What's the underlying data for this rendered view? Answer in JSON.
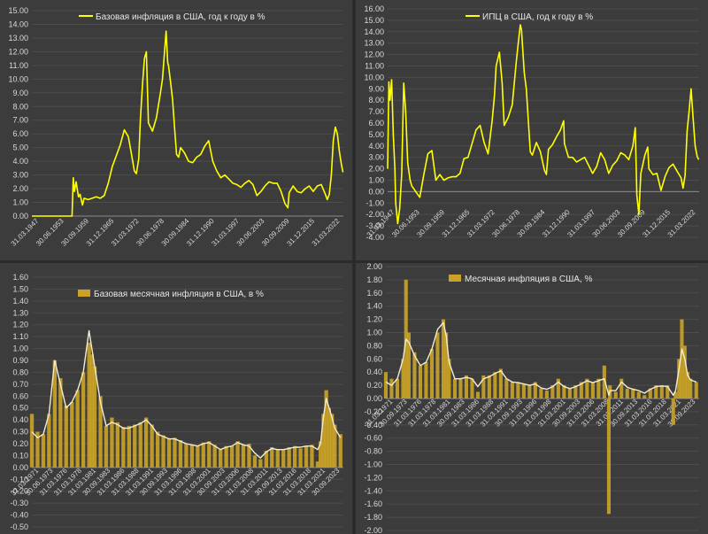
{
  "chart_data": [
    {
      "type": "line",
      "legend": "Базовая инфляция в США, год к году в %",
      "color": "#ffff00",
      "ylim": [
        0,
        15
      ],
      "ytick_step": 1,
      "ytick_labels": [
        "0.00",
        "1.00",
        "2.00",
        "3.00",
        "4.00",
        "5.00",
        "6.00",
        "7.00",
        "8.00",
        "9.00",
        "10.00",
        "11.00",
        "12.00",
        "13.00",
        "14.00",
        "15.00"
      ],
      "xtick_labels": [
        "31.03.1947",
        "30.06.1953",
        "30.09.1959",
        "31.12.1965",
        "31.03.1972",
        "30.06.1978",
        "30.09.1984",
        "31.12.1990",
        "31.03.1997",
        "30.06.2003",
        "30.09.2009",
        "31.12.2015",
        "31.03.2022"
      ],
      "xlim": [
        1947,
        2024.5
      ],
      "x": [
        1947,
        1957,
        1957.3,
        1957.6,
        1958,
        1958.6,
        1959,
        1959.6,
        1960,
        1961,
        1962,
        1963,
        1964,
        1965,
        1966,
        1967,
        1968,
        1969,
        1970,
        1971,
        1971.8,
        1972.5,
        1973,
        1973.6,
        1974,
        1974.5,
        1975,
        1975.5,
        1976,
        1977,
        1978,
        1979,
        1979.5,
        1980,
        1980.4,
        1980.8,
        1981,
        1981.5,
        1982,
        1982.5,
        1983,
        1983.5,
        1984,
        1985,
        1986,
        1987,
        1988,
        1989,
        1990,
        1991,
        1992,
        1993,
        1994,
        1995,
        1996,
        1997,
        1998,
        1999,
        2000,
        2001,
        2002,
        2003,
        2004,
        2005,
        2006,
        2007,
        2008,
        2009,
        2010,
        2010.7,
        2011,
        2012,
        2013,
        2014,
        2015,
        2016,
        2017,
        2018,
        2019,
        2020,
        2020.5,
        2021,
        2021.5,
        2022,
        2022.5,
        2023,
        2023.5,
        2024,
        2024.4
      ],
      "y": [
        0,
        0,
        2.8,
        1.8,
        2.5,
        1.4,
        1.6,
        0.8,
        1.3,
        1.2,
        1.3,
        1.4,
        1.3,
        1.5,
        2.4,
        3.6,
        4.4,
        5.2,
        6.3,
        5.8,
        4.5,
        3.3,
        3.1,
        4.2,
        7.0,
        9.5,
        11.5,
        12.0,
        6.8,
        6.2,
        7.2,
        9.0,
        10.0,
        12.0,
        13.5,
        11.2,
        11.0,
        9.8,
        8.5,
        6.5,
        4.5,
        4.3,
        5.0,
        4.6,
        4.0,
        3.9,
        4.3,
        4.5,
        5.1,
        5.5,
        4.0,
        3.3,
        2.8,
        3.0,
        2.7,
        2.4,
        2.3,
        2.1,
        2.4,
        2.6,
        2.3,
        1.5,
        1.8,
        2.2,
        2.5,
        2.4,
        2.4,
        1.8,
        0.9,
        0.6,
        1.7,
        2.2,
        1.8,
        1.7,
        2.0,
        2.2,
        1.8,
        2.2,
        2.3,
        1.6,
        1.2,
        1.6,
        3.0,
        5.5,
        6.5,
        6.0,
        4.7,
        3.8,
        3.2
      ]
    },
    {
      "type": "line",
      "legend": "ИПЦ в США, год к году в %",
      "color": "#ffff00",
      "ylim": [
        -4,
        16
      ],
      "ytick_step": 1,
      "ytick_labels": [
        "-4.00",
        "-3.00",
        "-2.00",
        "-1.00",
        "0.00",
        "1.00",
        "2.00",
        "3.00",
        "4.00",
        "5.00",
        "6.00",
        "7.00",
        "8.00",
        "9.00",
        "10.00",
        "11.00",
        "12.00",
        "13.00",
        "14.00",
        "15.00",
        "16.00"
      ],
      "xtick_labels": [
        "31.03.1947",
        "30.06.1953",
        "30.09.1959",
        "31.12.1965",
        "31.03.1972",
        "30.06.1978",
        "30.09.1984",
        "31.12.1990",
        "31.03.1997",
        "30.06.2003",
        "30.09.2009",
        "31.12.2015",
        "31.03.2022"
      ],
      "xlim": [
        1947,
        2024.5
      ],
      "x": [
        1947,
        1947.3,
        1947.6,
        1948,
        1948.4,
        1948.8,
        1949,
        1949.5,
        1950,
        1950.5,
        1951,
        1951.5,
        1952,
        1952.6,
        1953,
        1954,
        1955,
        1956,
        1957,
        1958,
        1959,
        1960,
        1961,
        1962,
        1963,
        1964,
        1965,
        1966,
        1967,
        1968,
        1969,
        1970,
        1971,
        1972,
        1973,
        1973.6,
        1974,
        1974.8,
        1975.5,
        1976,
        1977,
        1978,
        1979,
        1979.5,
        1980,
        1980.3,
        1981,
        1981.5,
        1982,
        1982.5,
        1983,
        1984,
        1985,
        1986,
        1986.5,
        1987,
        1988,
        1989,
        1990,
        1990.8,
        1991,
        1992,
        1993,
        1994,
        1995,
        1996,
        1997,
        1998,
        1999,
        2000,
        2001,
        2002,
        2003,
        2004,
        2005,
        2006,
        2007,
        2008,
        2008.6,
        2009,
        2009.5,
        2010,
        2011,
        2011.7,
        2012,
        2013,
        2014,
        2015,
        2016,
        2017,
        2018,
        2019,
        2020,
        2020.5,
        2021,
        2021.5,
        2022,
        2022.5,
        2023,
        2023.5,
        2024,
        2024.4
      ],
      "y": [
        2.0,
        9.6,
        8.0,
        9.8,
        5.0,
        2.0,
        -1.0,
        -2.8,
        -1.5,
        1.5,
        9.5,
        7.0,
        2.5,
        1.0,
        0.5,
        0.0,
        -0.5,
        1.5,
        3.3,
        3.6,
        1.0,
        1.5,
        1.0,
        1.2,
        1.3,
        1.3,
        1.6,
        2.9,
        3.0,
        4.2,
        5.4,
        5.8,
        4.3,
        3.3,
        6.2,
        8.5,
        11.0,
        12.2,
        9.5,
        5.8,
        6.5,
        7.6,
        11.3,
        13.0,
        14.6,
        14.2,
        10.4,
        9.0,
        6.2,
        3.5,
        3.2,
        4.3,
        3.5,
        1.9,
        1.5,
        3.7,
        4.1,
        4.8,
        5.4,
        6.2,
        4.2,
        3.0,
        3.0,
        2.6,
        2.8,
        3.0,
        2.3,
        1.6,
        2.2,
        3.4,
        2.8,
        1.6,
        2.3,
        2.7,
        3.4,
        3.2,
        2.8,
        4.0,
        5.6,
        -0.3,
        -2.0,
        1.6,
        3.2,
        3.9,
        2.0,
        1.5,
        1.6,
        0.1,
        1.3,
        2.1,
        2.4,
        1.8,
        1.2,
        0.3,
        1.4,
        5.3,
        7.0,
        9.0,
        6.4,
        4.0,
        3.1,
        2.8
      ]
    },
    {
      "type": "bar",
      "legend": "Базовая месячная инфляция в США, в %",
      "color": "#c9a227",
      "line_color": "#f4ecd0",
      "ylim": [
        -0.5,
        1.6
      ],
      "ytick_step": 0.1,
      "ytick_labels": [
        "-0.50",
        "-0.40",
        "-0.30",
        "-0.20",
        "-0.10",
        "0.00",
        "0.10",
        "0.20",
        "0.30",
        "0.40",
        "0.50",
        "0.60",
        "0.70",
        "0.80",
        "0.90",
        "1.00",
        "1.10",
        "1.20",
        "1.30",
        "1.40",
        "1.50",
        "1.60"
      ],
      "xtick_labels": [
        "31.03.1971",
        "30.06.1973",
        "31.03.1976",
        "31.03.1978",
        "31.03.1981",
        "30.09.1983",
        "31.03.1986",
        "31.03.1988",
        "31.03.1991",
        "30.09.1993",
        "31.03.1996",
        "31.03.1998",
        "31.03.2001",
        "30.09.2003",
        "31.03.2006",
        "31.03.2008",
        "31.03.2011",
        "30.09.2013",
        "31.03.2016",
        "31.03.2018",
        "31.03.2021",
        "30.09.2023"
      ],
      "xlim": [
        1970,
        2024.5
      ],
      "x": [
        1970,
        1971,
        1972,
        1973,
        1974,
        1975,
        1976,
        1977,
        1978,
        1979,
        1980,
        1980.5,
        1981,
        1982,
        1983,
        1984,
        1985,
        1986,
        1987,
        1988,
        1989,
        1990,
        1991,
        1992,
        1993,
        1994,
        1995,
        1996,
        1997,
        1998,
        1999,
        2000,
        2001,
        2002,
        2003,
        2004,
        2005,
        2006,
        2007,
        2008,
        2009,
        2010,
        2011,
        2012,
        2013,
        2014,
        2015,
        2016,
        2017,
        2018,
        2019,
        2020,
        2020.5,
        2021,
        2021.5,
        2022,
        2022.5,
        2023,
        2024
      ],
      "y": [
        0.45,
        0.3,
        0.28,
        0.45,
        0.9,
        0.75,
        0.52,
        0.55,
        0.65,
        0.8,
        1.05,
        0.95,
        0.85,
        0.6,
        0.35,
        0.42,
        0.38,
        0.34,
        0.35,
        0.36,
        0.38,
        0.42,
        0.36,
        0.3,
        0.27,
        0.24,
        0.25,
        0.23,
        0.2,
        0.19,
        0.18,
        0.21,
        0.22,
        0.19,
        0.15,
        0.18,
        0.18,
        0.22,
        0.19,
        0.2,
        0.1,
        0.07,
        0.14,
        0.17,
        0.15,
        0.15,
        0.17,
        0.18,
        0.16,
        0.18,
        0.19,
        0.05,
        0.22,
        0.45,
        0.65,
        0.5,
        0.45,
        0.36,
        0.28
      ],
      "smooth": [
        0.3,
        0.25,
        0.28,
        0.45,
        0.9,
        0.7,
        0.5,
        0.55,
        0.65,
        0.8,
        1.15,
        1.0,
        0.85,
        0.55,
        0.35,
        0.38,
        0.36,
        0.33,
        0.33,
        0.35,
        0.37,
        0.4,
        0.35,
        0.28,
        0.26,
        0.24,
        0.24,
        0.22,
        0.2,
        0.19,
        0.18,
        0.2,
        0.21,
        0.18,
        0.15,
        0.17,
        0.18,
        0.21,
        0.19,
        0.18,
        0.12,
        0.08,
        0.13,
        0.16,
        0.15,
        0.15,
        0.16,
        0.17,
        0.17,
        0.18,
        0.18,
        0.15,
        0.2,
        0.42,
        0.58,
        0.5,
        0.42,
        0.33,
        0.25
      ]
    },
    {
      "type": "bar",
      "legend": "Месячная инфляция в США, %",
      "color": "#c9a227",
      "line_color": "#f4ecd0",
      "ylim": [
        -2,
        2
      ],
      "ytick_step": 0.2,
      "ytick_labels": [
        "-2.00",
        "-1.80",
        "-1.60",
        "-1.40",
        "-1.20",
        "-1.00",
        "-0.80",
        "-0.60",
        "-0.40",
        "-0.20",
        "0.00",
        "0.20",
        "0.40",
        "0.60",
        "0.80",
        "1.00",
        "1.20",
        "1.40",
        "1.60",
        "1.80",
        "2.00"
      ],
      "xtick_labels": [
        "31.03.1971",
        "30.09.1973",
        "31.03.1976",
        "31.03.1978",
        "31.03.1981",
        "30.09.1983",
        "31.03.1986",
        "31.03.1988",
        "31.03.1991",
        "30.09.1993",
        "31.03.1996",
        "31.03.1998",
        "31.03.2001",
        "30.09.2003",
        "31.03.2006",
        "31.03.2008",
        "31.03.2011",
        "30.09.2013",
        "31.03.2016",
        "31.03.2018",
        "31.03.2021",
        "30.09.2023"
      ],
      "xlim": [
        1970,
        2024.5
      ],
      "x": [
        1970,
        1971,
        1972,
        1973,
        1973.5,
        1974,
        1975,
        1976,
        1977,
        1978,
        1979,
        1980,
        1980.5,
        1981,
        1982,
        1983,
        1984,
        1985,
        1986,
        1987,
        1988,
        1989,
        1990,
        1991,
        1992,
        1993,
        1994,
        1995,
        1996,
        1997,
        1998,
        1999,
        2000,
        2001,
        2002,
        2003,
        2004,
        2005,
        2006,
        2007,
        2008,
        2008.8,
        2009,
        2010,
        2011,
        2012,
        2013,
        2014,
        2015,
        2016,
        2017,
        2018,
        2019,
        2020,
        2020.4,
        2021,
        2021.5,
        2022,
        2022.5,
        2023,
        2024
      ],
      "y": [
        0.4,
        0.3,
        0.3,
        0.6,
        1.8,
        1.0,
        0.7,
        0.5,
        0.55,
        0.75,
        1.0,
        1.2,
        1.0,
        0.6,
        0.3,
        0.3,
        0.35,
        0.3,
        0.1,
        0.35,
        0.35,
        0.4,
        0.45,
        0.3,
        0.25,
        0.25,
        0.22,
        0.2,
        0.25,
        0.15,
        0.12,
        0.2,
        0.3,
        0.2,
        0.15,
        0.2,
        0.25,
        0.3,
        0.25,
        0.3,
        0.5,
        -1.75,
        0.2,
        0.1,
        0.3,
        0.15,
        0.15,
        0.1,
        0.05,
        0.15,
        0.2,
        0.2,
        0.2,
        -0.4,
        0.1,
        0.6,
        1.2,
        0.8,
        0.4,
        0.3,
        0.25
      ],
      "smooth": [
        0.25,
        0.2,
        0.3,
        0.6,
        0.9,
        0.85,
        0.65,
        0.5,
        0.55,
        0.75,
        1.05,
        1.15,
        0.95,
        0.55,
        0.3,
        0.3,
        0.32,
        0.3,
        0.18,
        0.3,
        0.33,
        0.38,
        0.42,
        0.3,
        0.25,
        0.24,
        0.22,
        0.2,
        0.22,
        0.16,
        0.14,
        0.18,
        0.25,
        0.18,
        0.15,
        0.18,
        0.22,
        0.27,
        0.24,
        0.27,
        0.3,
        0.05,
        0.12,
        0.12,
        0.25,
        0.17,
        0.14,
        0.12,
        0.08,
        0.14,
        0.18,
        0.19,
        0.18,
        0.05,
        0.12,
        0.45,
        0.75,
        0.6,
        0.35,
        0.28,
        0.25
      ]
    }
  ]
}
